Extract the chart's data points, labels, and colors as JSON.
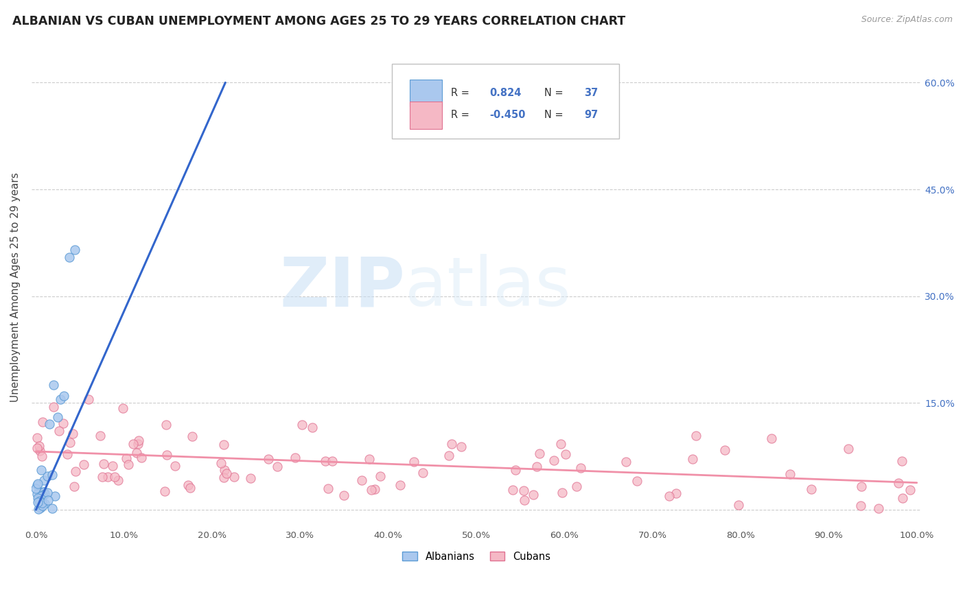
{
  "title": "ALBANIAN VS CUBAN UNEMPLOYMENT AMONG AGES 25 TO 29 YEARS CORRELATION CHART",
  "source": "Source: ZipAtlas.com",
  "ylabel": "Unemployment Among Ages 25 to 29 years",
  "xlim": [
    -0.005,
    1.005
  ],
  "ylim": [
    -0.025,
    0.65
  ],
  "xticks": [
    0.0,
    0.1,
    0.2,
    0.3,
    0.4,
    0.5,
    0.6,
    0.7,
    0.8,
    0.9,
    1.0
  ],
  "yticks": [
    0.0,
    0.15,
    0.3,
    0.45,
    0.6
  ],
  "ytick_labels_right": [
    "",
    "15.0%",
    "30.0%",
    "45.0%",
    "60.0%"
  ],
  "xtick_labels": [
    "0.0%",
    "10.0%",
    "20.0%",
    "30.0%",
    "40.0%",
    "50.0%",
    "60.0%",
    "70.0%",
    "80.0%",
    "90.0%",
    "100.0%"
  ],
  "albanian_fill": "#aac8ee",
  "albanian_edge": "#5b9bd5",
  "cuban_fill": "#f5b8c5",
  "cuban_edge": "#e07090",
  "albanian_line_color": "#3366cc",
  "cuban_line_color": "#f090a8",
  "R_albanian": "0.824",
  "N_albanian": "37",
  "R_cuban": "-0.450",
  "N_cuban": "97",
  "legend_label_1": "Albanians",
  "legend_label_2": "Cubans",
  "watermark": "ZIPatlas",
  "background_color": "#ffffff",
  "grid_color": "#cccccc",
  "label_color": "#4472c4",
  "title_color": "#222222",
  "alb_line_x0": 0.0,
  "alb_line_y0": 0.0,
  "alb_line_x1": 0.215,
  "alb_line_y1": 0.6,
  "cub_line_x0": 0.0,
  "cub_line_y0": 0.082,
  "cub_line_x1": 1.0,
  "cub_line_y1": 0.038
}
